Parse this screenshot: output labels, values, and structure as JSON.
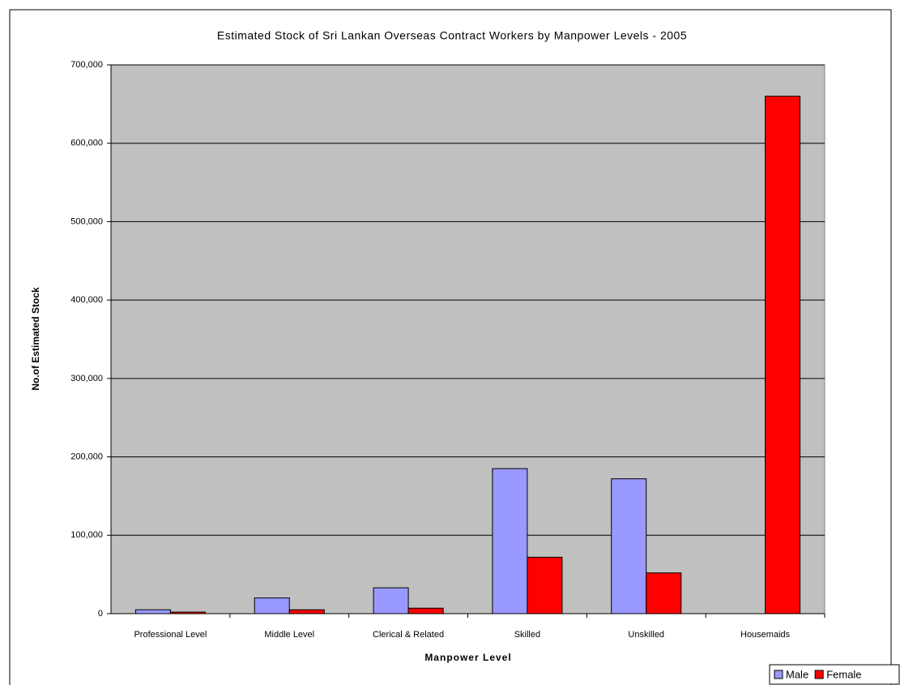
{
  "chart_data": {
    "type": "bar",
    "title": "Estimated Stock of Sri Lankan Overseas Contract Workers by Manpower Levels - 2005",
    "x_label": "Manpower Level",
    "y_label": "No.of Estimated Stock",
    "categories": [
      "Professional Level",
      "Middle Level",
      "Clerical & Related",
      "Skilled",
      "Unskilled",
      "Housemaids"
    ],
    "series": [
      {
        "name": "Male",
        "color": "#9999ff",
        "values": [
          5000,
          20000,
          33000,
          185000,
          172000,
          null
        ]
      },
      {
        "name": "Female",
        "color": "#ff0000",
        "values": [
          2000,
          5000,
          7000,
          72000,
          52000,
          660000
        ]
      }
    ],
    "ylim": [
      0,
      700000
    ],
    "yticks": [
      0,
      {
        "value": 100000,
        "label": "100,000"
      },
      {
        "value": 200000,
        "label": "200,000"
      },
      {
        "value": 300000,
        "label": "300,000"
      },
      {
        "value": 400000,
        "label": "400,000"
      },
      {
        "value": 500000,
        "label": "500,000"
      },
      {
        "value": 600000,
        "label": "600,000"
      },
      {
        "value": 700000,
        "label": "700,000"
      }
    ],
    "grid": true,
    "legend": "bottom-right"
  }
}
